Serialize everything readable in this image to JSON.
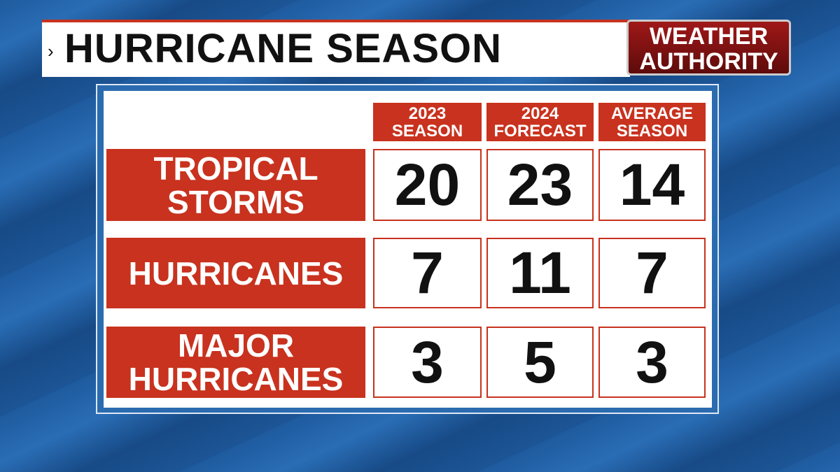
{
  "header": {
    "title": "HURRICANE SEASON",
    "logo": [
      "WEATHER",
      "AUTHORITY"
    ]
  },
  "table": {
    "columns": [
      [
        "2023",
        "SEASON"
      ],
      [
        "2024",
        "FORECAST"
      ],
      [
        "AVERAGE",
        "SEASON"
      ]
    ],
    "rows": [
      {
        "label": [
          "TROPICAL",
          "STORMS"
        ],
        "values": [
          20,
          23,
          14
        ]
      },
      {
        "label": [
          "HURRICANES"
        ],
        "values": [
          7,
          11,
          7
        ]
      },
      {
        "label": [
          "MAJOR",
          "HURRICANES"
        ],
        "values": [
          3,
          5,
          3
        ]
      }
    ]
  }
}
